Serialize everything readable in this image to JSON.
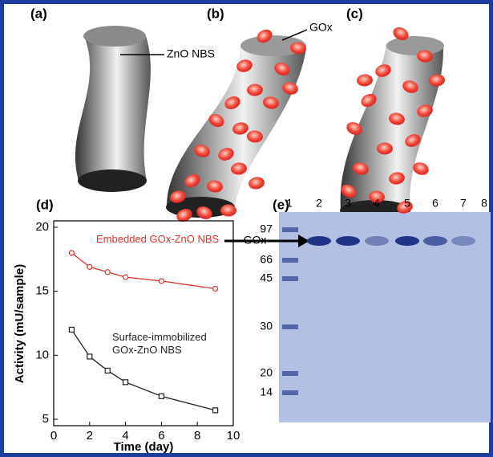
{
  "labels": [
    "(a)",
    "(b)",
    "(c)",
    "(d)",
    "(e)"
  ],
  "callouts": {
    "zno": "ZnO NBS",
    "gox": "GOx"
  },
  "chart_data": {
    "type": "line",
    "xlabel": "Time (day)",
    "ylabel": "Activity (mU/sample)",
    "x": [
      1,
      2,
      3,
      4,
      6,
      9
    ],
    "series": [
      {
        "name": "Embedded GOx-ZnO NBS",
        "color": "#e0312b",
        "marker": "circle",
        "values": [
          18.0,
          16.9,
          16.5,
          16.1,
          15.8,
          15.2
        ]
      },
      {
        "name": "Surface-immobilized GOx-ZnO NBS",
        "color": "#222222",
        "marker": "square",
        "values": [
          12.0,
          9.9,
          8.8,
          7.9,
          6.8,
          5.7
        ]
      }
    ],
    "xlim": [
      0,
      10
    ],
    "xticks": [
      0,
      2,
      4,
      6,
      8,
      10
    ],
    "ylim": [
      4.5,
      20.5
    ],
    "yticks": [
      5,
      10,
      15,
      20
    ]
  },
  "gel": {
    "lanes": [
      "1",
      "2",
      "3",
      "4",
      "5",
      "6",
      "7",
      "8"
    ],
    "markers": [
      "97",
      "66",
      "45",
      "30",
      "20",
      "14"
    ],
    "band_label": "GOx"
  }
}
